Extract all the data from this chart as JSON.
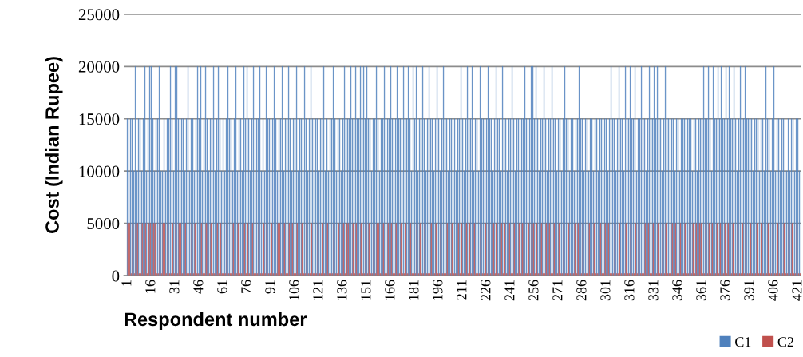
{
  "chart_data": {
    "type": "bar",
    "xlabel": "Respondent number",
    "ylabel": "Cost (Indian Rupee)",
    "categories": [
      "1",
      null,
      null,
      null,
      null,
      null,
      null,
      null,
      null,
      null,
      null,
      null,
      null,
      null,
      null,
      "16",
      null,
      null,
      null,
      null,
      null,
      null,
      null,
      null,
      null,
      null,
      null,
      null,
      null,
      null,
      "31",
      null,
      null,
      null,
      null,
      null,
      null,
      null,
      null,
      null,
      null,
      null,
      null,
      null,
      null,
      "46",
      null,
      null,
      null,
      null,
      null,
      null,
      null,
      null,
      null,
      null,
      null,
      null,
      null,
      null,
      "61",
      null,
      null,
      null,
      null,
      null,
      null,
      null,
      null,
      null,
      null,
      null,
      null,
      null,
      null,
      "76",
      null,
      null,
      null,
      null,
      null,
      null,
      null,
      null,
      null,
      null,
      null,
      null,
      null,
      null,
      "91",
      null,
      null,
      null,
      null,
      null,
      null,
      null,
      null,
      null,
      null,
      null,
      null,
      null,
      null,
      "106",
      null,
      null,
      null,
      null,
      null,
      null,
      null,
      null,
      null,
      null,
      null,
      null,
      null,
      null,
      "121",
      null,
      null,
      null,
      null,
      null,
      null,
      null,
      null,
      null,
      null,
      null,
      null,
      null,
      null,
      "136",
      null,
      null,
      null,
      null,
      null,
      null,
      null,
      null,
      null,
      null,
      null,
      null,
      null,
      null,
      "151",
      null,
      null,
      null,
      null,
      null,
      null,
      null,
      null,
      null,
      null,
      null,
      null,
      null,
      null,
      "166",
      null,
      null,
      null,
      null,
      null,
      null,
      null,
      null,
      null,
      null,
      null,
      null,
      null,
      null,
      "181",
      null,
      null,
      null,
      null,
      null,
      null,
      null,
      null,
      null,
      null,
      null,
      null,
      null,
      null,
      "196",
      null,
      null,
      null,
      null,
      null,
      null,
      null,
      null,
      null,
      null,
      null,
      null,
      null,
      null,
      "211",
      null,
      null,
      null,
      null,
      null,
      null,
      null,
      null,
      null,
      null,
      null,
      null,
      null,
      null,
      "226",
      null,
      null,
      null,
      null,
      null,
      null,
      null,
      null,
      null,
      null,
      null,
      null,
      null,
      null,
      "241",
      null,
      null,
      null,
      null,
      null,
      null,
      null,
      null,
      null,
      null,
      null,
      null,
      null,
      null,
      "256",
      null,
      null,
      null,
      null,
      null,
      null,
      null,
      null,
      null,
      null,
      null,
      null,
      null,
      null,
      "271",
      null,
      null,
      null,
      null,
      null,
      null,
      null,
      null,
      null,
      null,
      null,
      null,
      null,
      null,
      "286",
      null,
      null,
      null,
      null,
      null,
      null,
      null,
      null,
      null,
      null,
      null,
      null,
      null,
      null,
      "301",
      null,
      null,
      null,
      null,
      null,
      null,
      null,
      null,
      null,
      null,
      null,
      null,
      null,
      null,
      "316",
      null,
      null,
      null,
      null,
      null,
      null,
      null,
      null,
      null,
      null,
      null,
      null,
      null,
      null,
      "331",
      null,
      null,
      null,
      null,
      null,
      null,
      null,
      null,
      null,
      null,
      null,
      null,
      null,
      null,
      "346",
      null,
      null,
      null,
      null,
      null,
      null,
      null,
      null,
      null,
      null,
      null,
      null,
      null,
      null,
      "361",
      null,
      null,
      null,
      null,
      null,
      null,
      null,
      null,
      null,
      null,
      null,
      null,
      null,
      null,
      "376",
      null,
      null,
      null,
      null,
      null,
      null,
      null,
      null,
      null,
      null,
      null,
      null,
      null,
      null,
      "391",
      null,
      null,
      null,
      null,
      null,
      null,
      null,
      null,
      null,
      null,
      null,
      null,
      null,
      null,
      "406",
      null,
      null,
      null,
      null,
      null,
      null,
      null,
      null,
      null,
      null,
      null,
      null,
      null,
      null,
      "421",
      null
    ],
    "series": [
      {
        "name": "C1",
        "color": "#4f81bd",
        "values": [
          15000,
          10000,
          15000,
          15000,
          10000,
          20000,
          10000,
          15000,
          15000,
          10000,
          15000,
          20000,
          10000,
          15000,
          20000,
          20000,
          15000,
          10000,
          15000,
          15000,
          20000,
          10000,
          10000,
          15000,
          10000,
          15000,
          15000,
          20000,
          15000,
          10000,
          20000,
          20000,
          15000,
          10000,
          15000,
          15000,
          10000,
          15000,
          20000,
          10000,
          15000,
          15000,
          10000,
          15000,
          20000,
          15000,
          20000,
          10000,
          15000,
          20000,
          15000,
          10000,
          15000,
          15000,
          20000,
          10000,
          15000,
          20000,
          15000,
          10000,
          15000,
          10000,
          15000,
          20000,
          15000,
          15000,
          10000,
          15000,
          20000,
          10000,
          15000,
          15000,
          10000,
          20000,
          15000,
          20000,
          15000,
          10000,
          15000,
          20000,
          10000,
          15000,
          15000,
          20000,
          10000,
          15000,
          10000,
          20000,
          15000,
          15000,
          10000,
          15000,
          20000,
          15000,
          10000,
          15000,
          15000,
          20000,
          10000,
          15000,
          15000,
          20000,
          15000,
          10000,
          15000,
          15000,
          20000,
          10000,
          15000,
          15000,
          10000,
          20000,
          15000,
          10000,
          15000,
          20000,
          15000,
          10000,
          15000,
          15000,
          10000,
          15000,
          15000,
          20000,
          10000,
          15000,
          10000,
          15000,
          15000,
          20000,
          15000,
          10000,
          15000,
          15000,
          10000,
          15000,
          20000,
          15000,
          15000,
          15000,
          20000,
          15000,
          15000,
          20000,
          15000,
          15000,
          20000,
          15000,
          20000,
          15000,
          20000,
          15000,
          15000,
          10000,
          15000,
          15000,
          20000,
          15000,
          10000,
          15000,
          15000,
          20000,
          10000,
          15000,
          15000,
          20000,
          15000,
          10000,
          15000,
          20000,
          15000,
          15000,
          10000,
          20000,
          15000,
          15000,
          20000,
          15000,
          10000,
          20000,
          15000,
          20000,
          10000,
          15000,
          15000,
          20000,
          15000,
          10000,
          15000,
          20000,
          15000,
          15000,
          10000,
          15000,
          20000,
          15000,
          10000,
          15000,
          20000,
          15000,
          15000,
          10000,
          15000,
          15000,
          10000,
          15000,
          10000,
          15000,
          15000,
          20000,
          15000,
          10000,
          15000,
          20000,
          15000,
          15000,
          20000,
          10000,
          15000,
          15000,
          10000,
          20000,
          15000,
          15000,
          10000,
          15000,
          20000,
          15000,
          15000,
          10000,
          15000,
          20000,
          15000,
          15000,
          10000,
          20000,
          15000,
          15000,
          10000,
          15000,
          15000,
          20000,
          15000,
          10000,
          15000,
          15000,
          10000,
          15000,
          15000,
          20000,
          15000,
          10000,
          15000,
          20000,
          20000,
          15000,
          20000,
          15000,
          10000,
          15000,
          15000,
          20000,
          15000,
          10000,
          15000,
          15000,
          20000,
          15000,
          15000,
          10000,
          15000,
          15000,
          10000,
          15000,
          20000,
          15000,
          15000,
          10000,
          15000,
          15000,
          10000,
          15000,
          15000,
          20000,
          15000,
          15000,
          10000,
          15000,
          15000,
          10000,
          15000,
          15000,
          10000,
          15000,
          15000,
          10000,
          15000,
          15000,
          10000,
          15000,
          15000,
          10000,
          15000,
          20000,
          15000,
          15000,
          10000,
          15000,
          20000,
          15000,
          15000,
          10000,
          20000,
          15000,
          15000,
          20000,
          15000,
          15000,
          20000,
          10000,
          15000,
          15000,
          20000,
          15000,
          15000,
          10000,
          15000,
          20000,
          15000,
          15000,
          20000,
          15000,
          20000,
          15000,
          15000,
          10000,
          15000,
          20000,
          15000,
          15000,
          10000,
          15000,
          15000,
          10000,
          15000,
          15000,
          10000,
          15000,
          15000,
          15000,
          10000,
          15000,
          15000,
          15000,
          10000,
          15000,
          15000,
          10000,
          15000,
          15000,
          15000,
          20000,
          15000,
          15000,
          20000,
          15000,
          10000,
          20000,
          15000,
          15000,
          20000,
          15000,
          20000,
          15000,
          15000,
          20000,
          15000,
          20000,
          15000,
          15000,
          20000,
          15000,
          10000,
          15000,
          20000,
          15000,
          15000,
          20000,
          15000,
          15000,
          15000,
          15000,
          10000,
          15000,
          15000,
          15000,
          10000,
          15000,
          15000,
          10000,
          20000,
          15000,
          15000,
          10000,
          15000,
          20000,
          10000,
          15000,
          15000,
          10000,
          15000,
          15000,
          10000,
          10000,
          15000,
          10000,
          15000,
          15000,
          10000,
          15000,
          15000,
          10000
        ]
      },
      {
        "name": "C2",
        "color": "#c0504d",
        "values": [
          5000,
          5000,
          200,
          5000,
          200,
          5000,
          5000,
          200,
          200,
          5000,
          200,
          5000,
          200,
          5000,
          5000,
          200,
          5000,
          5000,
          200,
          200,
          5000,
          200,
          5000,
          5000,
          200,
          5000,
          200,
          200,
          5000,
          200,
          5000,
          200,
          5000,
          5000,
          200,
          200,
          5000,
          200,
          200,
          200,
          5000,
          200,
          5000,
          200,
          200,
          200,
          5000,
          200,
          200,
          5000,
          5000,
          200,
          5000,
          200,
          200,
          200,
          5000,
          200,
          5000,
          200,
          200,
          200,
          5000,
          200,
          200,
          200,
          5000,
          200,
          200,
          5000,
          200,
          200,
          200,
          5000,
          200,
          5000,
          200,
          200,
          5000,
          200,
          200,
          200,
          5000,
          200,
          200,
          5000,
          200,
          5000,
          200,
          200,
          5000,
          200,
          200,
          200,
          5000,
          5000,
          200,
          200,
          5000,
          200,
          200,
          5000,
          200,
          5000,
          200,
          200,
          5000,
          200,
          200,
          5000,
          200,
          200,
          5000,
          200,
          200,
          5000,
          200,
          200,
          200,
          5000,
          200,
          200,
          5000,
          200,
          200,
          5000,
          200,
          200,
          200,
          5000,
          200,
          200,
          5000,
          200,
          200,
          5000,
          200,
          5000,
          5000,
          200,
          200,
          5000,
          200,
          5000,
          200,
          200,
          5000,
          200,
          200,
          5000,
          200,
          5000,
          200,
          200,
          5000,
          200,
          5000,
          5000,
          200,
          200,
          5000,
          200,
          200,
          5000,
          200,
          5000,
          200,
          200,
          5000,
          200,
          200,
          5000,
          200,
          200,
          5000,
          200,
          200,
          5000,
          200,
          200,
          200,
          5000,
          200,
          5000,
          200,
          200,
          5000,
          200,
          200,
          200,
          5000,
          200,
          200,
          5000,
          200,
          200,
          5000,
          200,
          200,
          200,
          5000,
          200,
          200,
          5000,
          200,
          200,
          200,
          5000,
          200,
          5000,
          200,
          200,
          5000,
          200,
          5000,
          200,
          200,
          5000,
          200,
          200,
          200,
          5000,
          200,
          200,
          5000,
          200,
          5000,
          200,
          200,
          5000,
          200,
          5000,
          200,
          200,
          5000,
          200,
          5000,
          200,
          200,
          5000,
          200,
          200,
          5000,
          200,
          200,
          5000,
          200,
          5000,
          5000,
          200,
          200,
          5000,
          200,
          5000,
          5000,
          200,
          5000,
          200,
          200,
          5000,
          200,
          200,
          5000,
          200,
          5000,
          200,
          200,
          5000,
          200,
          200,
          5000,
          200,
          200,
          5000,
          200,
          200,
          5000,
          200,
          200,
          200,
          5000,
          200,
          5000,
          200,
          200,
          5000,
          200,
          200,
          200,
          5000,
          200,
          200,
          5000,
          200,
          200,
          200,
          5000,
          200,
          200,
          5000,
          200,
          5000,
          200,
          200,
          200,
          5000,
          200,
          200,
          5000,
          200,
          200,
          200,
          5000,
          200,
          200,
          5000,
          200,
          200,
          5000,
          200,
          5000,
          200,
          200,
          200,
          5000,
          200,
          5000,
          200,
          200,
          5000,
          200,
          200,
          5000,
          200,
          200,
          5000,
          200,
          5000,
          200,
          200,
          200,
          5000,
          200,
          5000,
          200,
          200,
          5000,
          200,
          200,
          5000,
          200,
          200,
          5000,
          200,
          5000,
          200,
          5000,
          200,
          5000,
          5000,
          200,
          200,
          5000,
          200,
          5000,
          200,
          5000,
          200,
          200,
          5000,
          200,
          5000,
          200,
          200,
          5000,
          200,
          5000,
          200,
          200,
          5000,
          200,
          200,
          5000,
          200,
          200,
          5000,
          200,
          5000,
          200,
          200,
          5000,
          200,
          200,
          200,
          5000,
          200,
          200,
          5000,
          200,
          200,
          200,
          5000,
          200,
          200,
          5000,
          200,
          200,
          5000,
          200,
          200,
          200,
          5000,
          200,
          200,
          5000,
          200,
          5000,
          200,
          200,
          5000,
          200,
          200
        ]
      }
    ],
    "ylim": [
      0,
      25000
    ],
    "yticks": [
      0,
      5000,
      10000,
      15000,
      20000,
      25000
    ],
    "grid": "y",
    "legend": "bottom right"
  }
}
